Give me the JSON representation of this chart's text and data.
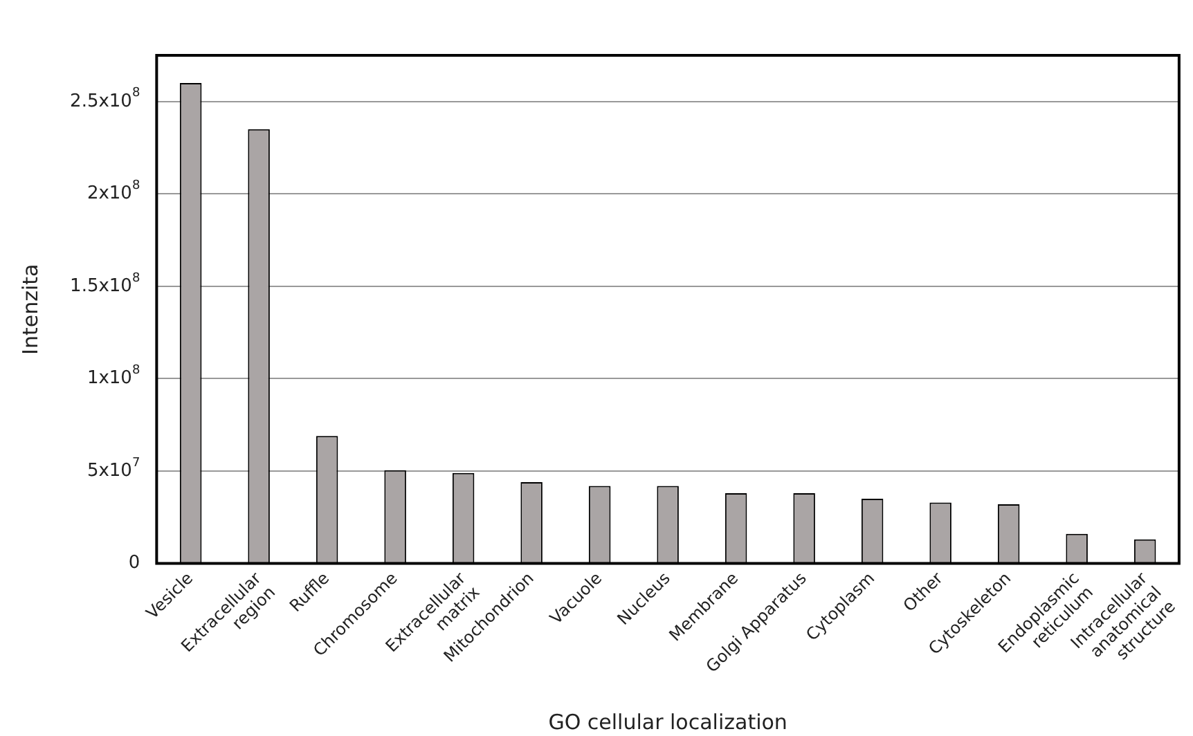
{
  "chart_data": {
    "type": "bar",
    "xlabel": "GO cellular localization",
    "ylabel": "Intenzita",
    "categories": [
      "Vesicle",
      "Extracellular\nregion",
      "Ruffle",
      "Chromosome",
      "Extracellular\nmatrix",
      "Mitochondrion",
      "Vacuole",
      "Nucleus",
      "Membrane",
      "Golgi Apparatus",
      "Cytoplasm",
      "Other",
      "Cytoskeleton",
      "Endoplasmic\nreticulum",
      "Intracellular\nanatomical\nstructure"
    ],
    "values": [
      260000000,
      235000000,
      69000000,
      50500000,
      49000000,
      44000000,
      42000000,
      42000000,
      38000000,
      38000000,
      35000000,
      33000000,
      32000000,
      16000000,
      13000000
    ],
    "color": "#aaa5a5",
    "ylim": [
      0,
      275000000
    ],
    "yticks": [
      {
        "value": 0,
        "label": "0"
      },
      {
        "value": 50000000,
        "label": "5x10$^{7}$"
      },
      {
        "value": 100000000,
        "label": "1x10$^{8}$"
      },
      {
        "value": 150000000,
        "label": "1.5x10$^{8}$"
      },
      {
        "value": 200000000,
        "label": "2x10$^{8}$"
      },
      {
        "value": 250000000,
        "label": "2.5x10$^{8}$"
      }
    ],
    "grid": "y",
    "legend": false
  }
}
